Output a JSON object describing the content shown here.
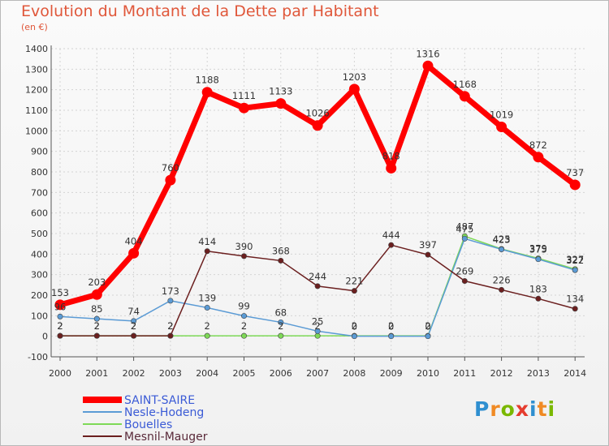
{
  "title": "Evolution du Montant de la Dette par Habitant",
  "subtitle": "(en €)",
  "logo_text": "Proxiti",
  "chart_data": {
    "type": "line",
    "x": [
      2000,
      2001,
      2002,
      2003,
      2004,
      2005,
      2006,
      2007,
      2008,
      2009,
      2010,
      2011,
      2012,
      2013,
      2014
    ],
    "ylim": [
      -100,
      1400
    ],
    "yticks": [
      -100,
      0,
      100,
      200,
      300,
      400,
      500,
      600,
      700,
      800,
      900,
      1000,
      1100,
      1200,
      1300,
      1400
    ],
    "grid": true,
    "legend_position": "bottom-left",
    "series": [
      {
        "name": "SAINT-SAIRE",
        "color": "#ff0000",
        "values": [
          153,
          203,
          404,
          760,
          1188,
          1111,
          1133,
          1026,
          1203,
          818,
          1316,
          1168,
          1019,
          872,
          737
        ]
      },
      {
        "name": "Nesle-Hodeng",
        "color": "#5b9bd5",
        "values": [
          96,
          85,
          74,
          173,
          139,
          99,
          68,
          25,
          0,
          0,
          0,
          475,
          423,
          375,
          322
        ]
      },
      {
        "name": "Bouelles",
        "color": "#7ed957",
        "values": [
          2,
          2,
          2,
          2,
          2,
          2,
          2,
          2,
          2,
          2,
          2,
          487,
          425,
          379,
          327
        ]
      },
      {
        "name": "Mesnil-Mauger",
        "color": "#6b1f1f",
        "values": [
          2,
          2,
          2,
          2,
          414,
          390,
          368,
          244,
          221,
          444,
          397,
          269,
          226,
          183,
          134
        ]
      }
    ],
    "point_labels": [
      [
        "153",
        "203",
        "404",
        "760",
        "1188",
        "1111",
        "1133",
        "1026",
        "1203",
        "818",
        "1316",
        "1168",
        "1019",
        "872",
        "737"
      ],
      [
        "96",
        "85",
        "74",
        "173",
        "139",
        "99",
        "68",
        "25",
        "0",
        "0",
        "0",
        "475",
        "423",
        "375",
        "322"
      ],
      [
        "2",
        "2",
        "2",
        "2",
        "2",
        "2",
        "2",
        "2",
        "2",
        "2",
        "2",
        "487",
        "425",
        "379",
        "327"
      ],
      [
        "2",
        "2",
        "2",
        "2",
        "414",
        "390",
        "368",
        "244",
        "221",
        "444",
        "397",
        "269",
        "226",
        "183",
        "134"
      ]
    ]
  }
}
